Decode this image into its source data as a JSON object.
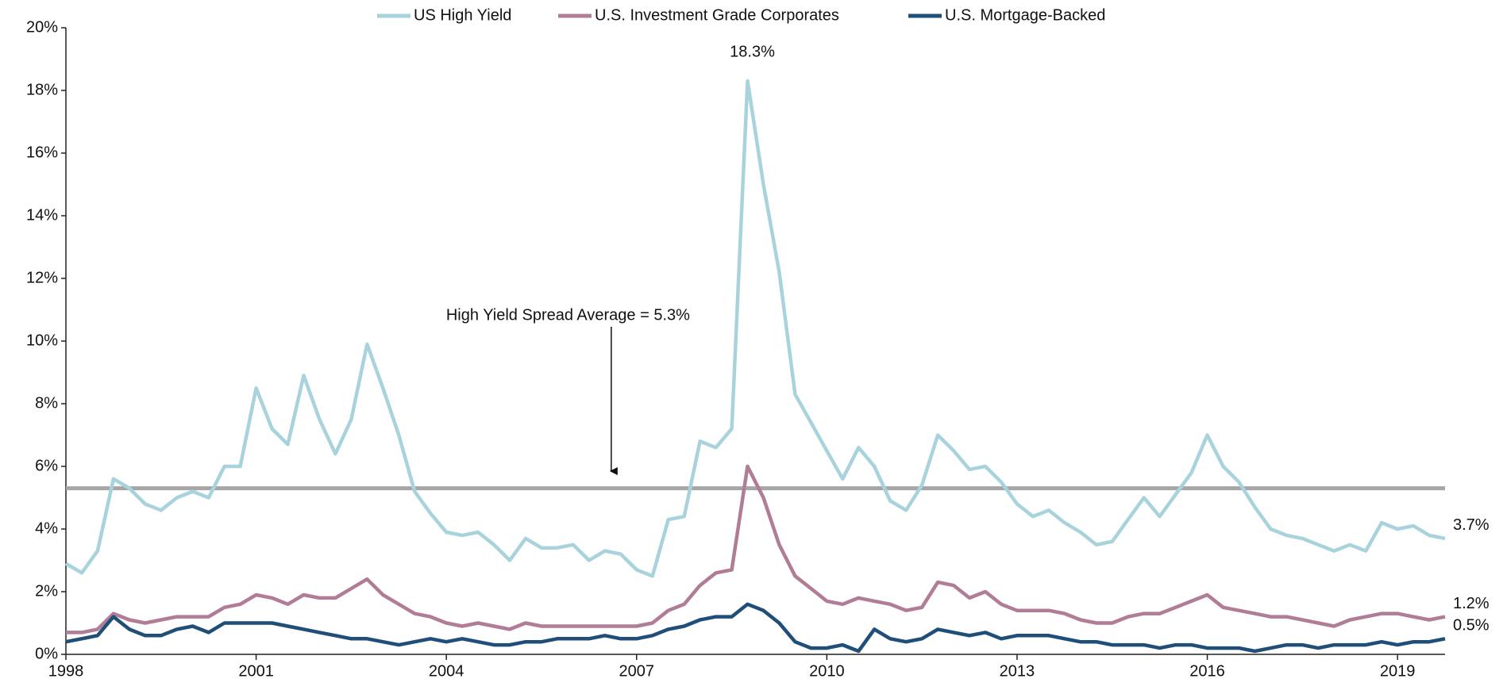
{
  "chart_data": {
    "type": "line",
    "x": [
      1998,
      1998.25,
      1998.5,
      1998.75,
      1999,
      1999.25,
      1999.5,
      1999.75,
      2000,
      2000.25,
      2000.5,
      2000.75,
      2001,
      2001.25,
      2001.5,
      2001.75,
      2002,
      2002.25,
      2002.5,
      2002.75,
      2003,
      2003.25,
      2003.5,
      2003.75,
      2004,
      2004.25,
      2004.5,
      2004.75,
      2005,
      2005.25,
      2005.5,
      2005.75,
      2006,
      2006.25,
      2006.5,
      2006.75,
      2007,
      2007.25,
      2007.5,
      2007.75,
      2008,
      2008.25,
      2008.5,
      2008.75,
      2009,
      2009.25,
      2009.5,
      2009.75,
      2010,
      2010.25,
      2010.5,
      2010.75,
      2011,
      2011.25,
      2011.5,
      2011.75,
      2012,
      2012.25,
      2012.5,
      2012.75,
      2013,
      2013.25,
      2013.5,
      2013.75,
      2014,
      2014.25,
      2014.5,
      2014.75,
      2015,
      2015.25,
      2015.5,
      2015.75,
      2016,
      2016.25,
      2016.5,
      2016.75,
      2017,
      2017.25,
      2017.5,
      2017.75,
      2018,
      2018.25,
      2018.5,
      2018.75,
      2019,
      2019.25,
      2019.5,
      2019.75
    ],
    "series": [
      {
        "name": "US High Yield",
        "color": "#a8d3dc",
        "values": [
          2.9,
          2.6,
          3.3,
          5.6,
          5.3,
          4.8,
          4.6,
          5.0,
          5.2,
          5.0,
          6.0,
          6.0,
          8.5,
          7.2,
          6.7,
          8.9,
          7.5,
          6.4,
          7.5,
          9.9,
          8.5,
          7.0,
          5.2,
          4.5,
          3.9,
          3.8,
          3.9,
          3.5,
          3.0,
          3.7,
          3.4,
          3.4,
          3.5,
          3.0,
          3.3,
          3.2,
          2.7,
          2.5,
          4.3,
          4.4,
          6.8,
          6.6,
          7.2,
          18.3,
          15.0,
          12.2,
          8.3,
          7.4,
          6.5,
          5.6,
          6.6,
          6.0,
          4.9,
          4.6,
          5.4,
          7.0,
          6.5,
          5.9,
          6.0,
          5.5,
          4.8,
          4.4,
          4.6,
          4.2,
          3.9,
          3.5,
          3.6,
          4.3,
          5.0,
          4.4,
          5.1,
          5.8,
          7.0,
          6.0,
          5.5,
          4.7,
          4.0,
          3.8,
          3.7,
          3.5,
          3.3,
          3.5,
          3.3,
          4.2,
          4.0,
          4.1,
          3.8,
          3.7
        ],
        "value_labels": [
          null,
          null,
          null,
          null,
          null,
          null,
          null,
          null,
          null,
          null,
          null,
          null,
          null,
          null,
          null,
          null,
          null,
          null,
          null,
          null,
          null,
          null,
          null,
          null,
          null,
          null,
          null,
          null,
          null,
          null,
          null,
          null,
          null,
          null,
          null,
          null,
          null,
          null,
          null,
          null,
          null,
          null,
          null,
          "18.3%",
          null,
          null,
          null,
          null,
          null,
          null,
          null,
          null,
          null,
          null,
          null,
          null,
          null,
          null,
          null,
          null,
          null,
          null,
          null,
          null,
          null,
          null,
          null,
          null,
          null,
          null,
          null,
          null,
          null,
          null,
          null,
          null,
          null,
          null,
          null,
          null,
          null,
          null,
          null,
          null,
          null,
          null,
          null,
          "3.7%"
        ]
      },
      {
        "name": "U.S. Investment Grade Corporates",
        "color": "#b07c96",
        "values": [
          0.7,
          0.7,
          0.8,
          1.3,
          1.1,
          1.0,
          1.1,
          1.2,
          1.2,
          1.2,
          1.5,
          1.6,
          1.9,
          1.8,
          1.6,
          1.9,
          1.8,
          1.8,
          2.1,
          2.4,
          1.9,
          1.6,
          1.3,
          1.2,
          1.0,
          0.9,
          1.0,
          0.9,
          0.8,
          1.0,
          0.9,
          0.9,
          0.9,
          0.9,
          0.9,
          0.9,
          0.9,
          1.0,
          1.4,
          1.6,
          2.2,
          2.6,
          2.7,
          6.0,
          5.0,
          3.5,
          2.5,
          2.1,
          1.7,
          1.6,
          1.8,
          1.7,
          1.6,
          1.4,
          1.5,
          2.3,
          2.2,
          1.8,
          2.0,
          1.6,
          1.4,
          1.4,
          1.4,
          1.3,
          1.1,
          1.0,
          1.0,
          1.2,
          1.3,
          1.3,
          1.5,
          1.7,
          1.9,
          1.5,
          1.4,
          1.3,
          1.2,
          1.2,
          1.1,
          1.0,
          0.9,
          1.1,
          1.2,
          1.3,
          1.3,
          1.2,
          1.1,
          1.2
        ],
        "value_labels": [
          null,
          null,
          null,
          null,
          null,
          null,
          null,
          null,
          null,
          null,
          null,
          null,
          null,
          null,
          null,
          null,
          null,
          null,
          null,
          null,
          null,
          null,
          null,
          null,
          null,
          null,
          null,
          null,
          null,
          null,
          null,
          null,
          null,
          null,
          null,
          null,
          null,
          null,
          null,
          null,
          null,
          null,
          null,
          null,
          null,
          null,
          null,
          null,
          null,
          null,
          null,
          null,
          null,
          null,
          null,
          null,
          null,
          null,
          null,
          null,
          null,
          null,
          null,
          null,
          null,
          null,
          null,
          null,
          null,
          null,
          null,
          null,
          null,
          null,
          null,
          null,
          null,
          null,
          null,
          null,
          null,
          null,
          null,
          null,
          null,
          null,
          null,
          "1.2%"
        ]
      },
      {
        "name": "U.S. Mortgage-Backed",
        "color": "#1f4e79",
        "values": [
          0.4,
          0.5,
          0.6,
          1.2,
          0.8,
          0.6,
          0.6,
          0.8,
          0.9,
          0.7,
          1.0,
          1.0,
          1.0,
          1.0,
          0.9,
          0.8,
          0.7,
          0.6,
          0.5,
          0.5,
          0.4,
          0.3,
          0.4,
          0.5,
          0.4,
          0.5,
          0.4,
          0.3,
          0.3,
          0.4,
          0.4,
          0.5,
          0.5,
          0.5,
          0.6,
          0.5,
          0.5,
          0.6,
          0.8,
          0.9,
          1.1,
          1.2,
          1.2,
          1.6,
          1.4,
          1.0,
          0.4,
          0.2,
          0.2,
          0.3,
          0.1,
          0.8,
          0.5,
          0.4,
          0.5,
          0.8,
          0.7,
          0.6,
          0.7,
          0.5,
          0.6,
          0.6,
          0.6,
          0.5,
          0.4,
          0.4,
          0.3,
          0.3,
          0.3,
          0.2,
          0.3,
          0.3,
          0.2,
          0.2,
          0.2,
          0.1,
          0.2,
          0.3,
          0.3,
          0.2,
          0.3,
          0.3,
          0.3,
          0.4,
          0.3,
          0.4,
          0.4,
          0.5
        ],
        "value_labels": [
          null,
          null,
          null,
          null,
          null,
          null,
          null,
          null,
          null,
          null,
          null,
          null,
          null,
          null,
          null,
          null,
          null,
          null,
          null,
          null,
          null,
          null,
          null,
          null,
          null,
          null,
          null,
          null,
          null,
          null,
          null,
          null,
          null,
          null,
          null,
          null,
          null,
          null,
          null,
          null,
          null,
          null,
          null,
          null,
          null,
          null,
          null,
          null,
          null,
          null,
          null,
          null,
          null,
          null,
          null,
          null,
          null,
          null,
          null,
          null,
          null,
          null,
          null,
          null,
          null,
          null,
          null,
          null,
          null,
          null,
          null,
          null,
          null,
          null,
          null,
          null,
          null,
          null,
          null,
          null,
          null,
          null,
          null,
          null,
          null,
          null,
          null,
          "0.5%"
        ]
      }
    ],
    "average": {
      "value": 5.3,
      "label": "High Yield Spread Average =  5.3%",
      "color": "#a6a6a6"
    },
    "xlim": [
      1998,
      2019.75
    ],
    "xticks": [
      1998,
      2001,
      2004,
      2007,
      2010,
      2013,
      2016,
      2019
    ],
    "ylim": [
      0,
      20
    ],
    "yticks": [
      {
        "value": 0,
        "label": "0%"
      },
      {
        "value": 2,
        "label": "2%"
      },
      {
        "value": 4,
        "label": "4%"
      },
      {
        "value": 6,
        "label": "6%"
      },
      {
        "value": 8,
        "label": "8%"
      },
      {
        "value": 10,
        "label": "10%"
      },
      {
        "value": 12,
        "label": "12%"
      },
      {
        "value": 14,
        "label": "14%"
      },
      {
        "value": 16,
        "label": "16%"
      },
      {
        "value": 18,
        "label": "18%"
      },
      {
        "value": 20,
        "label": "20%"
      }
    ],
    "legend": "top"
  }
}
